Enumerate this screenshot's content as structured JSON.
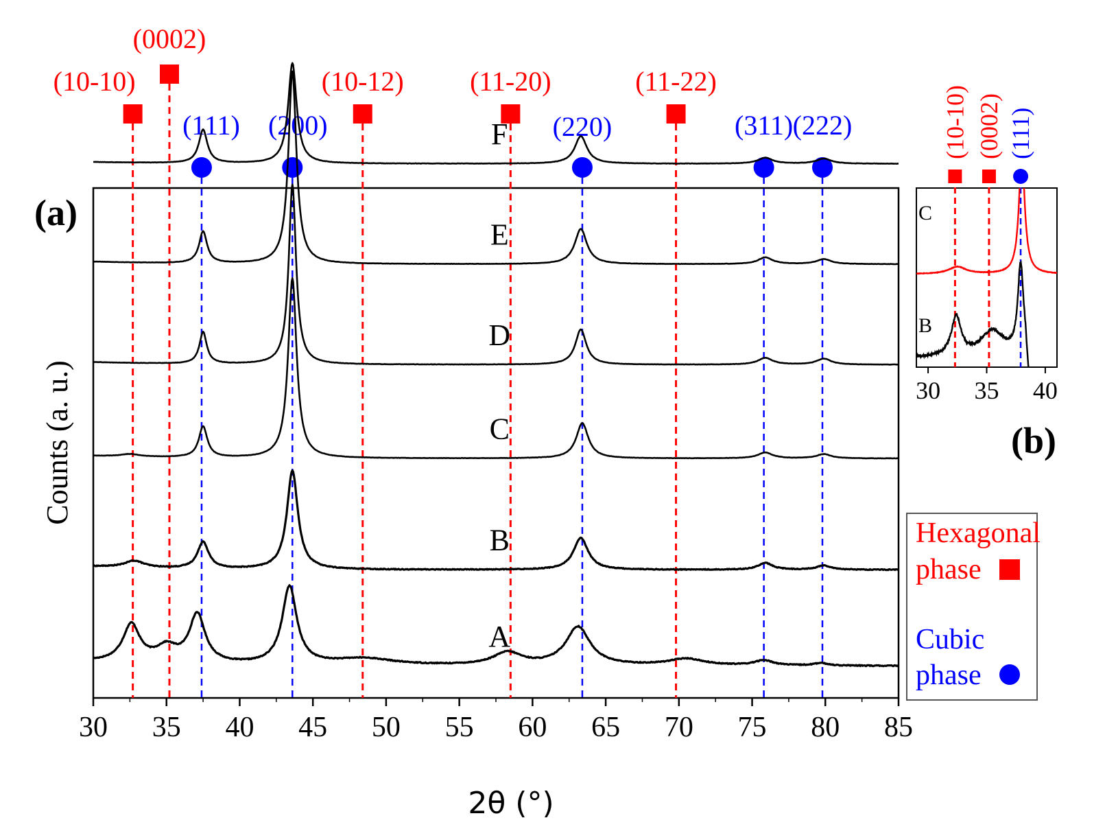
{
  "chart_data": [
    {
      "type": "line",
      "panel_label": "(a)",
      "xlabel": "2θ (°)",
      "ylabel": "Counts (a. u.)",
      "xlim": [
        30,
        85
      ],
      "xticks": [
        30,
        35,
        40,
        45,
        50,
        55,
        60,
        65,
        70,
        75,
        80,
        85
      ],
      "grid": false,
      "series": [
        {
          "name": "A",
          "baseline": 0.2,
          "slope": 0.05,
          "noise": 0.012,
          "peaks": [
            [
              32.6,
              0.45,
              0.7
            ],
            [
              35.0,
              0.18,
              0.9
            ],
            [
              37.1,
              0.58,
              0.65
            ],
            [
              43.4,
              0.93,
              0.6
            ],
            [
              48.5,
              0.08,
              2.5
            ],
            [
              58.3,
              0.15,
              1.2
            ],
            [
              63.1,
              0.46,
              1.0
            ],
            [
              70.5,
              0.08,
              1.5
            ],
            [
              75.8,
              0.06,
              0.8
            ],
            [
              79.7,
              0.03,
              0.6
            ]
          ]
        },
        {
          "name": "B",
          "baseline": 1.35,
          "slope": 0.04,
          "noise": 0.01,
          "peaks": [
            [
              32.8,
              0.08,
              0.8
            ],
            [
              37.5,
              0.32,
              0.45
            ],
            [
              43.6,
              1.18,
              0.45
            ],
            [
              63.3,
              0.38,
              0.6
            ],
            [
              75.9,
              0.08,
              0.6
            ],
            [
              79.9,
              0.05,
              0.6
            ]
          ]
        },
        {
          "name": "C",
          "baseline": 2.68,
          "slope": 0.03,
          "noise": 0.004,
          "peaks": [
            [
              32.5,
              0.03,
              0.8
            ],
            [
              37.5,
              0.37,
              0.35
            ],
            [
              43.6,
              2.15,
              0.35
            ],
            [
              63.4,
              0.42,
              0.5
            ],
            [
              75.9,
              0.07,
              0.6
            ],
            [
              79.9,
              0.05,
              0.6
            ]
          ]
        },
        {
          "name": "D",
          "baseline": 3.8,
          "slope": 0.03,
          "noise": 0.004,
          "peaks": [
            [
              37.5,
              0.38,
              0.3
            ],
            [
              43.6,
              2.15,
              0.3
            ],
            [
              63.3,
              0.42,
              0.45
            ],
            [
              75.9,
              0.08,
              0.6
            ],
            [
              79.9,
              0.07,
              0.6
            ]
          ]
        },
        {
          "name": "E",
          "baseline": 5.0,
          "slope": 0.03,
          "noise": 0.004,
          "peaks": [
            [
              37.5,
              0.38,
              0.33
            ],
            [
              43.6,
              2.3,
              0.33
            ],
            [
              63.3,
              0.42,
              0.5
            ],
            [
              75.9,
              0.08,
              0.6
            ],
            [
              79.9,
              0.06,
              0.6
            ]
          ]
        },
        {
          "name": "F",
          "baseline": 6.2,
          "slope": 0.02,
          "noise": 0.004,
          "peaks": [
            [
              37.5,
              0.4,
              0.35
            ],
            [
              43.6,
              1.2,
              0.35
            ],
            [
              63.3,
              0.33,
              0.5
            ],
            [
              75.9,
              0.07,
              0.6
            ],
            [
              79.9,
              0.06,
              0.6
            ]
          ]
        }
      ],
      "series_label_x": 54,
      "reference_lines": {
        "hexagonal": [
          {
            "label": "(10-10)",
            "x": 32.7
          },
          {
            "label": "(0002)",
            "x": 35.2
          },
          {
            "label": "(10-12)",
            "x": 48.4
          },
          {
            "label": "(11-20)",
            "x": 58.5
          },
          {
            "label": "(11-22)",
            "x": 69.8
          }
        ],
        "cubic": [
          {
            "label": "(111)",
            "x": 37.4
          },
          {
            "label": "(200)",
            "x": 43.6
          },
          {
            "label": "(220)",
            "x": 63.4
          },
          {
            "label": "(311)",
            "x": 75.8
          },
          {
            "label": "(222)",
            "x": 79.8
          }
        ]
      }
    },
    {
      "type": "line",
      "panel_label": "(b)",
      "xlim": [
        29,
        41
      ],
      "xticks": [
        30,
        35,
        40
      ],
      "series": [
        {
          "name": "C",
          "color": "#ff0000",
          "baseline": 0.7,
          "slope": 0.0,
          "noise": 0.004,
          "peaks": [
            [
              32.5,
              0.06,
              0.9
            ],
            [
              38.0,
              1.0,
              0.3
            ]
          ]
        },
        {
          "name": "B",
          "color": "#000000",
          "baseline": 0.0,
          "slope": 0.0,
          "noise": 0.02,
          "peaks": [
            [
              32.4,
              0.33,
              0.5
            ],
            [
              35.5,
              0.22,
              1.3
            ],
            [
              37.9,
              0.75,
              0.3
            ]
          ]
        }
      ],
      "reference_lines": {
        "hexagonal": [
          {
            "label": "(10-10)",
            "x": 32.3
          },
          {
            "label": "(0002)",
            "x": 35.2
          }
        ],
        "cubic": [
          {
            "label": "(111)",
            "x": 37.9
          }
        ]
      }
    }
  ],
  "legend": {
    "hexagonal_line1": "Hexagonal",
    "hexagonal_line2": "phase",
    "cubic_line1": "Cubic",
    "cubic_line2": "phase"
  },
  "colors": {
    "hexagonal": "#ff0000",
    "cubic": "#0000ff",
    "axis": "#000000"
  }
}
